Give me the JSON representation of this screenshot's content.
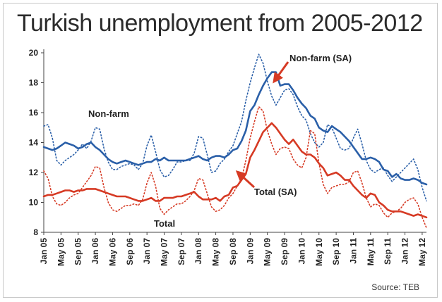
{
  "title": "Turkish unemployment from 2005-2012",
  "source": "Source: TEB",
  "colors": {
    "nonfarm": "#2a5fa8",
    "total": "#d63a24",
    "axis": "#444444",
    "arrow": "#d63a24"
  },
  "chart_data": {
    "type": "line",
    "title": "Turkish unemployment from 2005-2012",
    "xlabel": "",
    "ylabel": "",
    "ylim": [
      8,
      20
    ],
    "yticks": [
      8,
      10,
      12,
      14,
      16,
      18,
      20
    ],
    "grid": false,
    "xtick_labels": [
      "Jan 05",
      "May 05",
      "Sep 05",
      "Jan 06",
      "May 06",
      "Sep 06",
      "Jan 07",
      "May 07",
      "Sep 07",
      "Jan 08",
      "May 08",
      "Sep 08",
      "Jan 09",
      "May 09",
      "Sep 09",
      "Jan 10",
      "May 10",
      "Sep 10",
      "Jan 11",
      "May 11",
      "Sep 11",
      "Jan 12",
      "May 12"
    ],
    "x_start": "2005-01",
    "x_end": "2012-06",
    "series": [
      {
        "name": "Non-farm (SA)",
        "color": "#2a5fa8",
        "style": "solid",
        "values": [
          13.7,
          13.6,
          13.5,
          13.6,
          13.8,
          14.0,
          13.9,
          13.8,
          13.6,
          13.7,
          13.9,
          14.0,
          13.7,
          13.5,
          13.2,
          12.9,
          12.7,
          12.6,
          12.7,
          12.8,
          12.7,
          12.6,
          12.5,
          12.6,
          12.7,
          12.7,
          12.9,
          12.8,
          13.0,
          12.8,
          12.8,
          12.8,
          12.8,
          12.8,
          12.9,
          13.0,
          13.1,
          12.9,
          12.8,
          13.0,
          13.1,
          13.1,
          13.0,
          13.2,
          13.5,
          13.6,
          14.1,
          14.8,
          16.1,
          16.5,
          17.2,
          17.8,
          18.3,
          18.7,
          18.7,
          17.8,
          17.9,
          17.9,
          17.5,
          17.0,
          16.6,
          16.3,
          15.8,
          15.6,
          15.0,
          14.8,
          14.7,
          15.1,
          14.9,
          14.7,
          14.4,
          14.1,
          13.7,
          13.3,
          12.9,
          12.9,
          13.0,
          12.9,
          12.7,
          12.2,
          12.1,
          11.7,
          11.9,
          11.6,
          11.5,
          11.5,
          11.6,
          11.5,
          11.3,
          11.2
        ]
      },
      {
        "name": "Non-farm",
        "color": "#2a5fa8",
        "style": "dotted",
        "values": [
          15.1,
          15.2,
          14.3,
          12.8,
          12.5,
          12.8,
          13.0,
          13.2,
          13.5,
          13.9,
          13.6,
          14.1,
          15.0,
          14.9,
          13.6,
          12.7,
          12.2,
          12.2,
          12.4,
          12.5,
          12.6,
          12.5,
          12.2,
          12.6,
          13.8,
          14.5,
          13.4,
          12.2,
          11.7,
          11.8,
          12.2,
          12.7,
          12.7,
          12.8,
          12.8,
          13.3,
          14.4,
          14.3,
          13.2,
          12.0,
          12.1,
          12.6,
          12.9,
          13.4,
          13.8,
          14.6,
          15.4,
          16.8,
          18.0,
          19.0,
          19.9,
          19.3,
          18.1,
          17.1,
          16.5,
          17.0,
          17.5,
          17.6,
          17.2,
          16.4,
          15.8,
          15.5,
          14.6,
          14.0,
          13.7,
          14.0,
          15.2,
          15.0,
          14.3,
          13.6,
          13.5,
          13.6,
          14.3,
          14.9,
          13.9,
          12.8,
          12.2,
          12.0,
          12.2,
          12.3,
          11.8,
          11.4,
          11.7,
          12.0,
          12.3,
          12.6,
          12.9,
          12.2,
          11.0,
          10.1
        ]
      },
      {
        "name": "Total (SA)",
        "color": "#d63a24",
        "style": "solid",
        "values": [
          10.4,
          10.5,
          10.5,
          10.6,
          10.7,
          10.8,
          10.8,
          10.7,
          10.8,
          10.8,
          10.9,
          10.9,
          10.9,
          10.8,
          10.7,
          10.6,
          10.5,
          10.4,
          10.4,
          10.4,
          10.3,
          10.2,
          10.1,
          10.1,
          10.2,
          10.3,
          10.1,
          10.1,
          10.3,
          10.3,
          10.3,
          10.4,
          10.4,
          10.5,
          10.6,
          10.7,
          10.4,
          10.2,
          10.2,
          10.2,
          10.3,
          10.1,
          10.4,
          10.5,
          11.0,
          11.1,
          11.5,
          11.9,
          13.0,
          13.5,
          14.1,
          14.7,
          15.0,
          15.3,
          15.0,
          14.6,
          14.2,
          13.9,
          14.2,
          13.8,
          13.4,
          13.2,
          13.2,
          13.0,
          12.6,
          12.3,
          11.8,
          11.9,
          12.0,
          11.8,
          11.5,
          11.5,
          11.1,
          10.8,
          10.5,
          10.3,
          10.6,
          10.5,
          10.0,
          9.8,
          9.5,
          9.4,
          9.4,
          9.4,
          9.3,
          9.2,
          9.1,
          9.2,
          9.1,
          9.0
        ]
      },
      {
        "name": "Total",
        "color": "#d63a24",
        "style": "dotted",
        "values": [
          12.1,
          11.6,
          10.4,
          9.9,
          9.8,
          10.0,
          10.3,
          10.5,
          10.6,
          11.0,
          11.4,
          11.8,
          12.4,
          12.3,
          11.0,
          10.0,
          9.5,
          9.4,
          9.6,
          9.8,
          9.8,
          9.9,
          9.8,
          10.2,
          11.3,
          12.0,
          11.1,
          9.6,
          9.2,
          9.5,
          9.7,
          9.9,
          9.9,
          10.1,
          10.4,
          10.8,
          11.6,
          11.5,
          10.6,
          9.7,
          9.4,
          9.5,
          9.8,
          10.3,
          10.6,
          11.1,
          11.6,
          12.8,
          14.3,
          15.4,
          16.4,
          16.1,
          14.8,
          13.9,
          13.2,
          13.6,
          13.7,
          13.6,
          12.9,
          12.5,
          12.3,
          13.0,
          14.8,
          14.6,
          12.6,
          11.2,
          10.6,
          11.0,
          11.1,
          11.2,
          11.2,
          11.4,
          12.0,
          12.1,
          11.3,
          10.3,
          9.7,
          9.9,
          9.8,
          9.3,
          9.0,
          9.3,
          9.4,
          9.6,
          10.0,
          10.2,
          10.3,
          9.9,
          9.0,
          8.3
        ]
      }
    ]
  },
  "annotations": {
    "nonfarm_sa": "Non-farm (SA)",
    "nonfarm": "Non-farm",
    "total_sa": "Total (SA)",
    "total": "Total"
  }
}
